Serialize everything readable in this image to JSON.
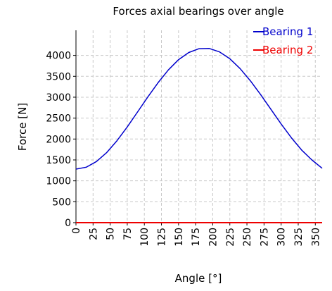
{
  "chart_data": {
    "type": "line",
    "title": "Forces axial bearings over angle",
    "xlabel": "Angle [°]",
    "ylabel": "Force [N]",
    "xlim": [
      0,
      360
    ],
    "ylim": [
      0,
      4600
    ],
    "xticks": [
      0,
      25,
      50,
      75,
      100,
      125,
      150,
      175,
      200,
      225,
      250,
      275,
      300,
      325,
      350
    ],
    "yticks": [
      0,
      500,
      1000,
      1500,
      2000,
      2500,
      3000,
      3500,
      4000
    ],
    "grid": true,
    "legend_position": "top-right",
    "x": [
      0,
      15,
      30,
      45,
      60,
      75,
      90,
      105,
      120,
      135,
      150,
      165,
      180,
      195,
      210,
      225,
      240,
      255,
      270,
      285,
      300,
      315,
      330,
      345,
      360
    ],
    "series": [
      {
        "name": "Bearing 1",
        "color": "#0000cc",
        "values": [
          1280,
          1326,
          1462,
          1678,
          1960,
          2289,
          2645,
          3005,
          3347,
          3651,
          3897,
          4070,
          4161,
          4165,
          4083,
          3919,
          3685,
          3394,
          3063,
          2711,
          2360,
          2029,
          1737,
          1500,
          1300
        ]
      },
      {
        "name": "Bearing 2",
        "color": "#ee0000",
        "values": [
          0,
          0,
          0,
          0,
          0,
          0,
          0,
          0,
          0,
          0,
          0,
          0,
          0,
          0,
          0,
          0,
          0,
          0,
          0,
          0,
          0,
          0,
          0,
          0,
          0
        ]
      }
    ]
  }
}
